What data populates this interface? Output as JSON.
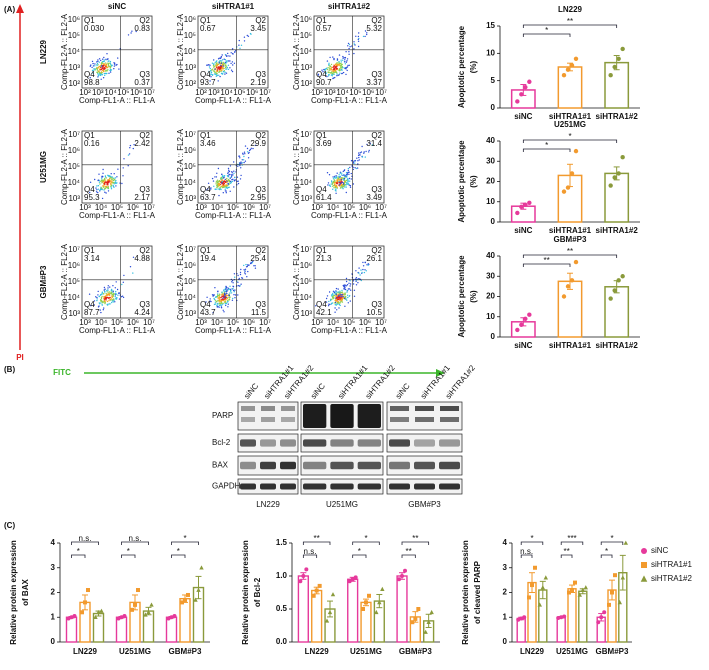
{
  "panel_labels": [
    "(A)",
    "(B)",
    "(C)"
  ],
  "flow": {
    "columns": [
      "siNC",
      "siHTRA1#1",
      "siHTRA1#2"
    ],
    "quadrant_names": [
      "Q1",
      "Q2",
      "Q3",
      "Q4"
    ],
    "x_label": "Comp-FL1-A :: FL1-A",
    "y_label": "Comp-FL2-A :: FL2-A",
    "y_arrow": "PI",
    "x_arrow": "FITC",
    "rows": [
      {
        "label": "LN229",
        "x_ticks": [
          "10²",
          "10³",
          "10⁴",
          "10⁵",
          "10⁶",
          "10⁷"
        ],
        "y_ticks": [
          "10²",
          "10³",
          "10⁴",
          "10⁵",
          "10⁶"
        ],
        "plots": [
          [
            "0.030",
            "0.83",
            "0.37",
            "98.8"
          ],
          [
            "0.67",
            "3.45",
            "2.19",
            "93.7"
          ],
          [
            "0.57",
            "5.32",
            "3.37",
            "90.7"
          ]
        ]
      },
      {
        "label": "U251MG",
        "x_ticks": [
          "10³",
          "10⁴",
          "10⁵",
          "10⁶",
          "10⁷"
        ],
        "y_ticks": [
          "10³",
          "10⁴",
          "10⁵",
          "10⁶",
          "10⁷"
        ],
        "plots": [
          [
            "0.16",
            "2.42",
            "2.17",
            "95.3"
          ],
          [
            "3.46",
            "29.9",
            "2.95",
            "63.7"
          ],
          [
            "3.69",
            "31.4",
            "3.49",
            "61.4"
          ]
        ]
      },
      {
        "label": "GBM#P3",
        "x_ticks": [
          "10³",
          "10⁴",
          "10⁵",
          "10⁶",
          "10⁷"
        ],
        "y_ticks": [
          "10³",
          "10⁴",
          "10⁵",
          "10⁶",
          "10⁷"
        ],
        "plots": [
          [
            "3.14",
            "4.88",
            "4.24",
            "87.7"
          ],
          [
            "19.4",
            "25.4",
            "11.5",
            "43.7"
          ],
          [
            "21.3",
            "26.1",
            "10.5",
            "42.1"
          ]
        ]
      }
    ]
  },
  "blot": {
    "lanes": [
      "siNC",
      "siHTRA1#1",
      "siHTRA1#2"
    ],
    "proteins": [
      "PARP",
      "Bcl-2",
      "BAX",
      "GAPDH"
    ],
    "cell_lines": [
      "LN229",
      "U251MG",
      "GBM#P3"
    ]
  },
  "chart_data": [
    {
      "type": "bar",
      "title": "LN229",
      "ylabel": [
        "Apoptotic percentage",
        "(%)"
      ],
      "categories": [
        "siNC",
        "siHTRA1#1",
        "siHTRA1#2"
      ],
      "colors": [
        "#e6399b",
        "#f29a2e",
        "#8a9a3b"
      ],
      "values": [
        3.3,
        7.5,
        8.3
      ],
      "errors": [
        1.0,
        0.7,
        1.3
      ],
      "points": [
        [
          1.2,
          2.5,
          3.8,
          4.8
        ],
        [
          6.0,
          7.0,
          7.8,
          9.0
        ],
        [
          6.0,
          7.5,
          9.0,
          10.8
        ]
      ],
      "brackets": [
        "*",
        "**"
      ],
      "ylim": [
        0,
        15
      ],
      "yticks": [
        0,
        5,
        10,
        15
      ]
    },
    {
      "type": "bar",
      "title": "U251MG",
      "ylabel": [
        "Apoptotic percentage",
        "(%)"
      ],
      "categories": [
        "siNC",
        "siHTRA1#1",
        "siHTRA1#2"
      ],
      "colors": [
        "#e6399b",
        "#f29a2e",
        "#8a9a3b"
      ],
      "values": [
        7.8,
        23,
        24
      ],
      "errors": [
        1.5,
        5.5,
        3.2
      ],
      "points": [
        [
          4.5,
          7.5,
          8.5,
          9.5
        ],
        [
          15,
          17,
          24,
          35
        ],
        [
          18,
          22,
          24,
          32
        ]
      ],
      "brackets": [
        "*",
        "*"
      ],
      "ylim": [
        0,
        40
      ],
      "yticks": [
        0,
        10,
        20,
        30,
        40
      ]
    },
    {
      "type": "bar",
      "title": "GBM#P3",
      "ylabel": [
        "Apoptotic percentage",
        "(%)"
      ],
      "categories": [
        "siNC",
        "siHTRA1#1",
        "siHTRA1#2"
      ],
      "colors": [
        "#e6399b",
        "#f29a2e",
        "#8a9a3b"
      ],
      "values": [
        7.5,
        27.5,
        24.8
      ],
      "errors": [
        2.0,
        4.0,
        3.0
      ],
      "points": [
        [
          3.5,
          6,
          9,
          11
        ],
        [
          20,
          25,
          28,
          37
        ],
        [
          19,
          23,
          28,
          30
        ]
      ],
      "brackets": [
        "**",
        "**"
      ],
      "ylim": [
        0,
        40
      ],
      "yticks": [
        0,
        10,
        20,
        30,
        40
      ]
    },
    {
      "type": "grouped_bar",
      "ylabel": [
        "Relative protein expression",
        "of BAX"
      ],
      "categories": [
        "LN229",
        "U251MG",
        "GBM#P3"
      ],
      "series": [
        {
          "color": "#e6399b",
          "values": [
            1.0,
            1.0,
            1.0
          ],
          "errors": [
            0.03,
            0.03,
            0.03
          ],
          "points": [
            [
              0.95,
              1.0,
              1.05
            ],
            [
              0.95,
              1.0,
              1.05
            ],
            [
              0.95,
              1.0,
              1.05
            ]
          ]
        },
        {
          "color": "#f29a2e",
          "values": [
            1.6,
            1.6,
            1.75
          ],
          "errors": [
            0.3,
            0.3,
            0.15
          ],
          "points": [
            [
              1.2,
              1.6,
              2.1
            ],
            [
              1.3,
              1.5,
              2.1
            ],
            [
              1.6,
              1.7,
              1.9
            ]
          ]
        },
        {
          "color": "#8a9a3b",
          "values": [
            1.15,
            1.25,
            2.2
          ],
          "errors": [
            0.1,
            0.15,
            0.45
          ],
          "points": [
            [
              1.0,
              1.2,
              1.25
            ],
            [
              1.1,
              1.2,
              1.5
            ],
            [
              1.7,
              2.1,
              3.0
            ]
          ]
        }
      ],
      "brackets": [
        [
          "*",
          "n.s."
        ],
        [
          "*",
          "n.s."
        ],
        [
          "*",
          "*"
        ]
      ],
      "ylim": [
        0,
        4
      ],
      "yticks": [
        0,
        1,
        2,
        3,
        4
      ]
    },
    {
      "type": "grouped_bar",
      "ylabel": [
        "Relative protein expression",
        "of Bcl-2"
      ],
      "categories": [
        "LN229",
        "U251MG",
        "GBM#P3"
      ],
      "series": [
        {
          "color": "#e6399b",
          "values": [
            1.0,
            0.95,
            1.0
          ],
          "errors": [
            0.05,
            0.03,
            0.05
          ],
          "points": [
            [
              0.92,
              1.0,
              1.1
            ],
            [
              0.92,
              0.95,
              0.98
            ],
            [
              0.95,
              1.0,
              1.08
            ]
          ]
        },
        {
          "color": "#f29a2e",
          "values": [
            0.78,
            0.6,
            0.38
          ],
          "errors": [
            0.05,
            0.05,
            0.08
          ],
          "points": [
            [
              0.7,
              0.78,
              0.85
            ],
            [
              0.5,
              0.6,
              0.7
            ],
            [
              0.3,
              0.35,
              0.5
            ]
          ]
        },
        {
          "color": "#8a9a3b",
          "values": [
            0.5,
            0.62,
            0.32
          ],
          "errors": [
            0.12,
            0.1,
            0.1
          ],
          "points": [
            [
              0.32,
              0.45,
              0.72
            ],
            [
              0.45,
              0.6,
              0.8
            ],
            [
              0.15,
              0.3,
              0.45
            ]
          ]
        }
      ],
      "brackets": [
        [
          "n.s.",
          "**"
        ],
        [
          "*",
          "*"
        ],
        [
          "**",
          "**"
        ]
      ],
      "ylim": [
        0,
        1.5
      ],
      "yticks": [
        {
          "value": 0,
          "label": "0.0"
        },
        0.5,
        {
          "value": 1,
          "label": "1.0"
        },
        1.5
      ]
    },
    {
      "type": "grouped_bar",
      "ylabel": [
        "Relative protein expression",
        "of cleaved PARP"
      ],
      "categories": [
        "LN229",
        "U251MG",
        "GBM#P3"
      ],
      "series": [
        {
          "name": "siNC",
          "color": "#e6399b",
          "values": [
            0.95,
            1.0,
            1.0
          ],
          "errors": [
            0.05,
            0.03,
            0.15
          ],
          "points": [
            [
              0.9,
              0.95,
              1.0
            ],
            [
              0.97,
              1.0,
              1.03
            ],
            [
              0.8,
              1.0,
              1.2
            ]
          ]
        },
        {
          "name": "siHTRA1#1",
          "color": "#f29a2e",
          "values": [
            2.4,
            2.15,
            2.1
          ],
          "errors": [
            0.4,
            0.15,
            0.4
          ],
          "points": [
            [
              1.8,
              2.3,
              3.0
            ],
            [
              2.0,
              2.1,
              2.4
            ],
            [
              1.5,
              2.0,
              2.7
            ]
          ]
        },
        {
          "name": "siHTRA1#2",
          "color": "#8a9a3b",
          "values": [
            2.1,
            2.05,
            2.8
          ],
          "errors": [
            0.35,
            0.1,
            0.7
          ],
          "points": [
            [
              1.5,
              2.2,
              2.6
            ],
            [
              1.9,
              2.1,
              2.2
            ],
            [
              1.6,
              2.6,
              4.0
            ]
          ]
        }
      ],
      "brackets": [
        [
          "n.s.",
          "*"
        ],
        [
          "**",
          "***"
        ],
        [
          "*",
          "*"
        ]
      ],
      "ylim": [
        0,
        4
      ],
      "yticks": [
        0,
        1,
        2,
        3,
        4
      ],
      "legend": "right"
    }
  ]
}
